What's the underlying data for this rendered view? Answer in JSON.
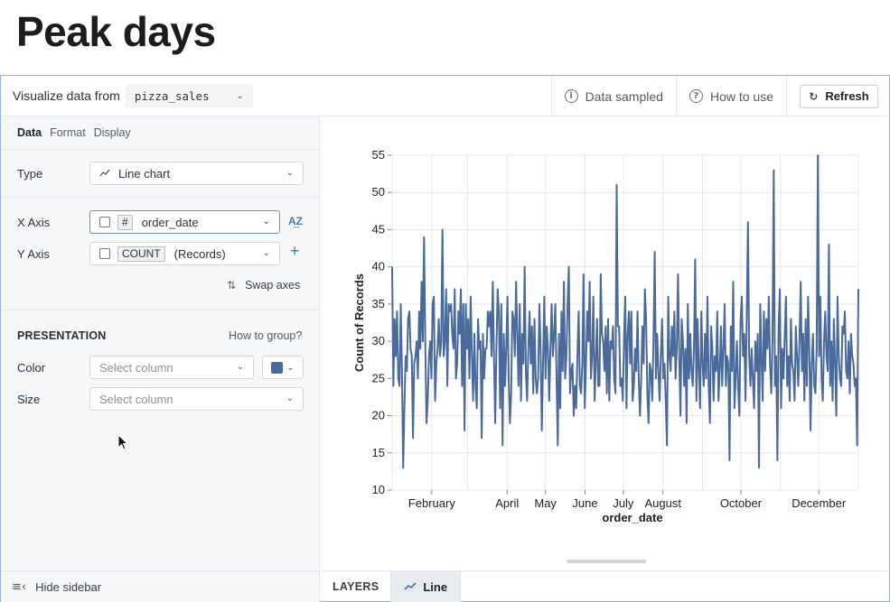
{
  "page": {
    "title": "Peak days"
  },
  "topbar": {
    "visualize_label": "Visualize data from",
    "source": "pizza_sales",
    "data_sampled": "Data sampled",
    "how_to_use": "How to use",
    "refresh": "Refresh"
  },
  "sidebar": {
    "tabs": [
      "Data",
      "Format",
      "Display"
    ],
    "type_label": "Type",
    "type_value": "Line chart",
    "x_axis_label": "X Axis",
    "x_axis_tag": "#",
    "x_axis_value": "order_date",
    "y_axis_label": "Y Axis",
    "y_axis_tag": "COUNT",
    "y_axis_value": "(Records)",
    "swap_axes": "Swap axes",
    "presentation_label": "PRESENTATION",
    "how_to_group": "How to group?",
    "color_label": "Color",
    "color_placeholder": "Select column",
    "color_swatch": "#4a6a9c",
    "size_label": "Size",
    "size_placeholder": "Select column",
    "hide_sidebar": "Hide sidebar"
  },
  "bottom": {
    "layers_label": "LAYERS",
    "layer_name": "Line"
  },
  "chart_data": {
    "type": "line",
    "xlabel": "order_date",
    "ylabel": "Count of Records",
    "ylim": [
      10,
      55
    ],
    "yticks": [
      10,
      15,
      20,
      25,
      30,
      35,
      40,
      45,
      50,
      55
    ],
    "x_tick_labels": [
      "February",
      "April",
      "May",
      "June",
      "July",
      "August",
      "October",
      "December"
    ],
    "x_tick_months": [
      2,
      4,
      5,
      6,
      7,
      8,
      10,
      12
    ],
    "grid": true,
    "color": "#4a6a9c",
    "series": [
      {
        "values": [
          40,
          24,
          33,
          28,
          34,
          25,
          24,
          35,
          26,
          13,
          21,
          28,
          26,
          33,
          34,
          29,
          28,
          17,
          27,
          28,
          30,
          25,
          34,
          29,
          38,
          30,
          44,
          30,
          19,
          22,
          28,
          30,
          25,
          35,
          36,
          22,
          27,
          29,
          33,
          28,
          30,
          45,
          28,
          30,
          37,
          24,
          35,
          34,
          35,
          31,
          29,
          37,
          25,
          27,
          34,
          31,
          37,
          24,
          35,
          18,
          35,
          29,
          33,
          25,
          36,
          28,
          22,
          31,
          24,
          21,
          33,
          29,
          30,
          17,
          31,
          25,
          29,
          29,
          34,
          32,
          34,
          28,
          38,
          28,
          19,
          29,
          37,
          34,
          21,
          35,
          16,
          31,
          24,
          29,
          36,
          25,
          19,
          23,
          34,
          33,
          28,
          38,
          31,
          24,
          35,
          22,
          31,
          27,
          40,
          26,
          22,
          29,
          34,
          27,
          32,
          23,
          33,
          25,
          23,
          25,
          35,
          29,
          18,
          27,
          36,
          25,
          32,
          29,
          22,
          29,
          35,
          28,
          31,
          35,
          25,
          16,
          31,
          21,
          34,
          26,
          38,
          25,
          28,
          35,
          40,
          23,
          26,
          27,
          20,
          24,
          21,
          28,
          34,
          24,
          23,
          27,
          39,
          21,
          27,
          34,
          30,
          38,
          25,
          28,
          36,
          22,
          27,
          33,
          24,
          24,
          39,
          31,
          30,
          26,
          32,
          23,
          33,
          22,
          30,
          29,
          32,
          25,
          23,
          51,
          32,
          32,
          24,
          25,
          22,
          30,
          36,
          21,
          31,
          34,
          27,
          34,
          22,
          24,
          29,
          26,
          34,
          25,
          20,
          25,
          32,
          27,
          37,
          33,
          23,
          19,
          27,
          26,
          22,
          30,
          42,
          25,
          31,
          26,
          22,
          28,
          33,
          25,
          27,
          22,
          16,
          36,
          28,
          26,
          32,
          28,
          34,
          25,
          29,
          39,
          28,
          20,
          33,
          30,
          24,
          29,
          19,
          35,
          25,
          31,
          26,
          24,
          29,
          41,
          22,
          33,
          26,
          21,
          34,
          27,
          24,
          31,
          25,
          36,
          24,
          19,
          32,
          29,
          22,
          28,
          26,
          34,
          22,
          26,
          32,
          24,
          29,
          35,
          24,
          28,
          27,
          14,
          32,
          26,
          38,
          21,
          25,
          30,
          24,
          20,
          33,
          36,
          28,
          31,
          22,
          33,
          46,
          28,
          24,
          29,
          25,
          21,
          30,
          26,
          31,
          13,
          35,
          28,
          22,
          34,
          26,
          33,
          29,
          36,
          27,
          23,
          30,
          53,
          24,
          28,
          14,
          32,
          37,
          21,
          29,
          25,
          31,
          36,
          24,
          28,
          22,
          33,
          27,
          26,
          22,
          32,
          28,
          24,
          30,
          38,
          26,
          31,
          22,
          33,
          24,
          36,
          29,
          18,
          27,
          31,
          24,
          23,
          29,
          55,
          28,
          36,
          25,
          22,
          30,
          34,
          28,
          26,
          43,
          24,
          30,
          22,
          33,
          27,
          20,
          36,
          28,
          25,
          24,
          32,
          31,
          34,
          26,
          25,
          30,
          23,
          31,
          28,
          27,
          24,
          25,
          16,
          37
        ]
      }
    ]
  }
}
